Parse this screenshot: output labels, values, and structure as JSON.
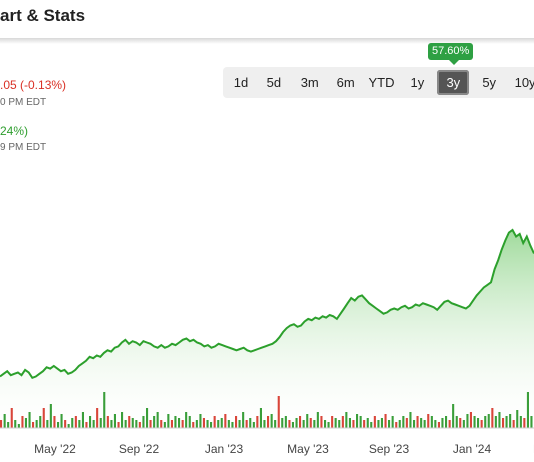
{
  "header": {
    "title": "art & Stats"
  },
  "quote": {
    "change_text": ".05 (-0.13%)",
    "change_time": "0 PM EDT",
    "after_text": "24%)",
    "after_time": "9 PM EDT"
  },
  "range": {
    "badge": "57.60%",
    "buttons": [
      "1d",
      "5d",
      "3m",
      "6m",
      "YTD",
      "1y",
      "3y",
      "5y",
      "10y"
    ],
    "active": "3y"
  },
  "colors": {
    "line": "#2ca02c",
    "fill_top": "#8fd48a",
    "badge": "#2ea043",
    "down": "#d93025",
    "up_volume": "#3a9e3a",
    "down_volume": "#d9453a"
  },
  "chart_data": {
    "type": "area",
    "x_tick_labels": [
      "May '22",
      "Sep '22",
      "Jan '23",
      "May '23",
      "Sep '23",
      "Jan '24",
      "M"
    ],
    "series": [
      {
        "values": [
          0.18,
          0.2,
          0.22,
          0.19,
          0.2,
          0.21,
          0.19,
          0.23,
          0.21,
          0.17,
          0.18,
          0.2,
          0.22,
          0.25,
          0.24,
          0.26,
          0.24,
          0.22,
          0.23,
          0.2,
          0.21,
          0.23,
          0.26,
          0.28,
          0.3,
          0.33,
          0.32,
          0.34,
          0.33,
          0.36,
          0.38,
          0.37,
          0.4,
          0.41,
          0.44,
          0.46,
          0.43,
          0.45,
          0.44,
          0.42,
          0.45,
          0.44,
          0.43,
          0.41,
          0.4,
          0.42,
          0.4,
          0.41,
          0.43,
          0.42,
          0.44,
          0.46,
          0.47,
          0.45,
          0.46,
          0.44,
          0.43,
          0.41,
          0.42,
          0.4,
          0.41,
          0.43,
          0.42,
          0.41,
          0.4,
          0.39,
          0.38,
          0.39,
          0.4,
          0.38,
          0.37,
          0.38,
          0.39,
          0.4,
          0.41,
          0.42,
          0.43,
          0.45,
          0.48,
          0.52,
          0.55,
          0.57,
          0.58,
          0.56,
          0.57,
          0.6,
          0.62,
          0.61,
          0.63,
          0.62,
          0.64,
          0.63,
          0.65,
          0.64,
          0.62,
          0.66,
          0.7,
          0.74,
          0.78,
          0.76,
          0.79,
          0.8,
          0.77,
          0.74,
          0.72,
          0.7,
          0.68,
          0.66,
          0.67,
          0.69,
          0.7,
          0.69,
          0.71,
          0.72,
          0.7,
          0.71,
          0.73,
          0.72,
          0.74,
          0.73,
          0.72,
          0.71,
          0.69,
          0.72,
          0.75,
          0.76,
          0.74,
          0.73,
          0.72,
          0.71,
          0.7,
          0.72,
          0.76,
          0.8,
          0.83,
          0.86,
          0.88,
          0.9,
          1.0,
          1.07,
          1.15,
          1.22,
          1.28,
          1.3,
          1.25,
          1.27,
          1.2,
          1.25,
          1.18,
          1.12
        ]
      }
    ],
    "volume": [
      0.2,
      0.35,
      0.15,
      0.5,
      0.2,
      0.1,
      0.3,
      0.25,
      0.4,
      0.15,
      0.2,
      0.3,
      0.5,
      0.2,
      0.6,
      0.3,
      0.15,
      0.35,
      0.2,
      0.1,
      0.25,
      0.3,
      0.2,
      0.4,
      0.15,
      0.3,
      0.2,
      0.5,
      0.25,
      0.9,
      0.3,
      0.2,
      0.35,
      0.15,
      0.4,
      0.2,
      0.3,
      0.25,
      0.2,
      0.15,
      0.3,
      0.5,
      0.2,
      0.3,
      0.4,
      0.2,
      0.15,
      0.35,
      0.2,
      0.3,
      0.25,
      0.2,
      0.4,
      0.3,
      0.15,
      0.2,
      0.35,
      0.25,
      0.2,
      0.15,
      0.3,
      0.2,
      0.25,
      0.35,
      0.2,
      0.15,
      0.3,
      0.2,
      0.4,
      0.2,
      0.25,
      0.15,
      0.3,
      0.5,
      0.2,
      0.3,
      0.35,
      0.2,
      0.8,
      0.25,
      0.3,
      0.2,
      0.15,
      0.25,
      0.3,
      0.2,
      0.35,
      0.25,
      0.2,
      0.4,
      0.3,
      0.2,
      0.15,
      0.3,
      0.25,
      0.2,
      0.3,
      0.4,
      0.25,
      0.2,
      0.35,
      0.3,
      0.2,
      0.25,
      0.15,
      0.3,
      0.2,
      0.25,
      0.35,
      0.2,
      0.3,
      0.15,
      0.2,
      0.3,
      0.25,
      0.4,
      0.2,
      0.3,
      0.25,
      0.2,
      0.35,
      0.3,
      0.2,
      0.15,
      0.25,
      0.3,
      0.2,
      0.6,
      0.3,
      0.25,
      0.2,
      0.35,
      0.4,
      0.3,
      0.25,
      0.2,
      0.3,
      0.35,
      0.5,
      0.3,
      0.4,
      0.25,
      0.3,
      0.35,
      0.2,
      0.45,
      0.3,
      0.25,
      0.9,
      0.3
    ],
    "grid": false
  }
}
